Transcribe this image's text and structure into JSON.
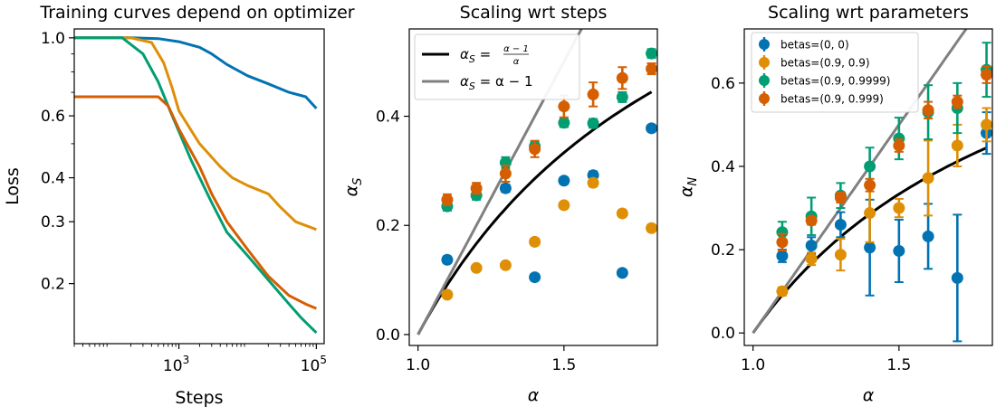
{
  "colors": {
    "blue": "#0173b2",
    "orange": "#de8f05",
    "green": "#029e73",
    "red": "#d55e00",
    "black": "#000000",
    "gray": "#808080"
  },
  "chart_data": [
    {
      "type": "line",
      "title": "Training curves depend on optimizer",
      "xlabel": "Steps",
      "ylabel": "Loss",
      "xscale": "log",
      "yscale": "log",
      "xlim": [
        30,
        130000
      ],
      "ylim": [
        0.135,
        1.06
      ],
      "xticks": [
        {
          "value": 1000,
          "label_base": "10",
          "label_exp": "3"
        },
        {
          "value": 100000,
          "label_base": "10",
          "label_exp": "5"
        }
      ],
      "yticks": [
        {
          "value": 1.0,
          "label": "1.0"
        },
        {
          "value": 0.6,
          "label": "0.6"
        },
        {
          "value": 0.4,
          "label": "0.4"
        },
        {
          "value": 0.3,
          "label": "0.3"
        },
        {
          "value": 0.2,
          "label": "0.2"
        }
      ],
      "y_minor_ticks": [
        0.9,
        0.8,
        0.7,
        0.5
      ],
      "series": [
        {
          "name": "betas=(0, 0)",
          "color": "blue",
          "points": [
            [
              30,
              1.0
            ],
            [
              200,
              1.0
            ],
            [
              500,
              0.995
            ],
            [
              1000,
              0.975
            ],
            [
              2000,
              0.94
            ],
            [
              3000,
              0.9
            ],
            [
              5000,
              0.84
            ],
            [
              10000,
              0.78
            ],
            [
              20000,
              0.74
            ],
            [
              40000,
              0.7
            ],
            [
              70000,
              0.68
            ],
            [
              100000,
              0.63
            ]
          ]
        },
        {
          "name": "betas=(0.9, 0.9)",
          "color": "orange",
          "points": [
            [
              30,
              1.0
            ],
            [
              200,
              1.0
            ],
            [
              400,
              0.97
            ],
            [
              600,
              0.85
            ],
            [
              800,
              0.72
            ],
            [
              1000,
              0.62
            ],
            [
              2000,
              0.5
            ],
            [
              4000,
              0.43
            ],
            [
              6000,
              0.4
            ],
            [
              10000,
              0.38
            ],
            [
              20000,
              0.36
            ],
            [
              30000,
              0.33
            ],
            [
              50000,
              0.3
            ],
            [
              100000,
              0.285
            ]
          ]
        },
        {
          "name": "betas=(0.9, 0.9999)",
          "color": "green",
          "points": [
            [
              30,
              1.0
            ],
            [
              150,
              1.0
            ],
            [
              300,
              0.9
            ],
            [
              500,
              0.75
            ],
            [
              800,
              0.6
            ],
            [
              1500,
              0.45
            ],
            [
              3000,
              0.34
            ],
            [
              5000,
              0.28
            ],
            [
              10000,
              0.24
            ],
            [
              20000,
              0.205
            ],
            [
              40000,
              0.175
            ],
            [
              60000,
              0.16
            ],
            [
              100000,
              0.145
            ]
          ]
        },
        {
          "name": "betas=(0.9, 0.999)",
          "color": "red",
          "points": [
            [
              30,
              0.68
            ],
            [
              500,
              0.68
            ],
            [
              700,
              0.64
            ],
            [
              1000,
              0.55
            ],
            [
              2000,
              0.43
            ],
            [
              3000,
              0.36
            ],
            [
              5000,
              0.3
            ],
            [
              10000,
              0.25
            ],
            [
              20000,
              0.21
            ],
            [
              40000,
              0.185
            ],
            [
              70000,
              0.175
            ],
            [
              100000,
              0.17
            ]
          ]
        }
      ]
    },
    {
      "type": "scatter",
      "title": "Scaling wrt steps",
      "xlabel": "α",
      "ylabel_main": "α",
      "ylabel_sub": "S",
      "xlim": [
        0.97,
        1.82
      ],
      "ylim": [
        -0.02,
        0.56
      ],
      "xticks": [
        {
          "value": 1.0,
          "label": "1.0"
        },
        {
          "value": 1.5,
          "label": "1.5"
        }
      ],
      "yticks": [
        {
          "value": 0.0,
          "label": "0.0"
        },
        {
          "value": 0.2,
          "label": "0.2"
        },
        {
          "value": 0.4,
          "label": "0.4"
        }
      ],
      "lines": [
        {
          "name": "α_S = (α−1)/α",
          "legend_main": "α",
          "legend_sub": "S",
          "legend_eq": " = ",
          "legend_num": "α − 1",
          "legend_den": "α",
          "color": "black",
          "kind": "frac"
        },
        {
          "name": "α_S = α − 1",
          "legend_main": "α",
          "legend_sub": "S",
          "legend_rest": " = α − 1",
          "color": "gray",
          "kind": "linear"
        }
      ],
      "x": [
        1.1,
        1.2,
        1.3,
        1.4,
        1.5,
        1.6,
        1.7,
        1.8
      ],
      "series": [
        {
          "name": "betas=(0, 0)",
          "color": "blue",
          "values": [
            0.137,
            null,
            0.268,
            0.105,
            0.282,
            0.292,
            0.113,
            0.378
          ],
          "errors": [
            0.006,
            null,
            0.007,
            0.006,
            0.006,
            0.007,
            0.005,
            0.006
          ]
        },
        {
          "name": "betas=(0.9, 0.9)",
          "color": "orange",
          "values": [
            0.073,
            0.122,
            0.127,
            0.17,
            0.237,
            0.278,
            0.222,
            0.195
          ],
          "errors": [
            0.005,
            0.005,
            0.005,
            0.006,
            0.006,
            0.007,
            0.006,
            0.006
          ]
        },
        {
          "name": "betas=(0.9, 0.9999)",
          "color": "green",
          "values": [
            0.235,
            0.255,
            0.315,
            0.345,
            0.388,
            0.387,
            0.435,
            0.515
          ],
          "errors": [
            0.008,
            0.008,
            0.01,
            0.008,
            0.008,
            0.008,
            0.009,
            0.008
          ]
        },
        {
          "name": "betas=(0.9, 0.999)",
          "color": "red",
          "values": [
            0.247,
            0.268,
            0.295,
            0.34,
            0.418,
            0.44,
            0.47,
            0.487
          ],
          "errors": [
            0.01,
            0.01,
            0.015,
            0.015,
            0.02,
            0.022,
            0.02,
            0.01
          ]
        }
      ]
    },
    {
      "type": "scatter",
      "title": "Scaling wrt parameters",
      "xlabel": "α",
      "ylabel_main": "α",
      "ylabel_sub": "N",
      "xlim": [
        0.97,
        1.82
      ],
      "ylim": [
        -0.03,
        0.73
      ],
      "xticks": [
        {
          "value": 1.0,
          "label": "1.0"
        },
        {
          "value": 1.5,
          "label": "1.5"
        }
      ],
      "yticks": [
        {
          "value": 0.0,
          "label": "0.0"
        },
        {
          "value": 0.2,
          "label": "0.2"
        },
        {
          "value": 0.4,
          "label": "0.4"
        },
        {
          "value": 0.6,
          "label": "0.6"
        }
      ],
      "lines": [
        {
          "name": "(α−1)/α",
          "color": "black",
          "kind": "frac"
        },
        {
          "name": "α − 1",
          "color": "gray",
          "kind": "linear"
        }
      ],
      "legend": [
        "betas=(0, 0)",
        "betas=(0.9, 0.9)",
        "betas=(0.9, 0.9999)",
        "betas=(0.9, 0.999)"
      ],
      "x": [
        1.1,
        1.2,
        1.3,
        1.4,
        1.5,
        1.6,
        1.7,
        1.8
      ],
      "series": [
        {
          "name": "betas=(0, 0)",
          "color": "blue",
          "values": [
            0.185,
            0.21,
            0.26,
            0.205,
            0.197,
            0.232,
            0.132,
            0.48
          ],
          "errors": [
            0.015,
            0.02,
            0.03,
            0.115,
            0.075,
            0.078,
            0.152,
            0.05
          ]
        },
        {
          "name": "betas=(0.9, 0.9)",
          "color": "orange",
          "values": [
            0.1,
            0.178,
            0.188,
            0.288,
            0.3,
            0.372,
            0.45,
            0.5
          ],
          "errors": [
            0.01,
            0.015,
            0.038,
            0.07,
            0.022,
            0.09,
            0.05,
            0.04
          ]
        },
        {
          "name": "betas=(0.9, 0.9999)",
          "color": "green",
          "values": [
            0.242,
            0.28,
            0.33,
            0.4,
            0.467,
            0.53,
            0.54,
            0.632
          ],
          "errors": [
            0.025,
            0.045,
            0.03,
            0.045,
            0.05,
            0.065,
            0.06,
            0.065
          ]
        },
        {
          "name": "betas=(0.9, 0.999)",
          "color": "red",
          "values": [
            0.218,
            0.27,
            0.325,
            0.355,
            0.45,
            0.535,
            0.555,
            0.62
          ],
          "errors": [
            0.02,
            0.01,
            0.012,
            0.015,
            0.015,
            0.02,
            0.015,
            0.02
          ]
        }
      ]
    }
  ]
}
